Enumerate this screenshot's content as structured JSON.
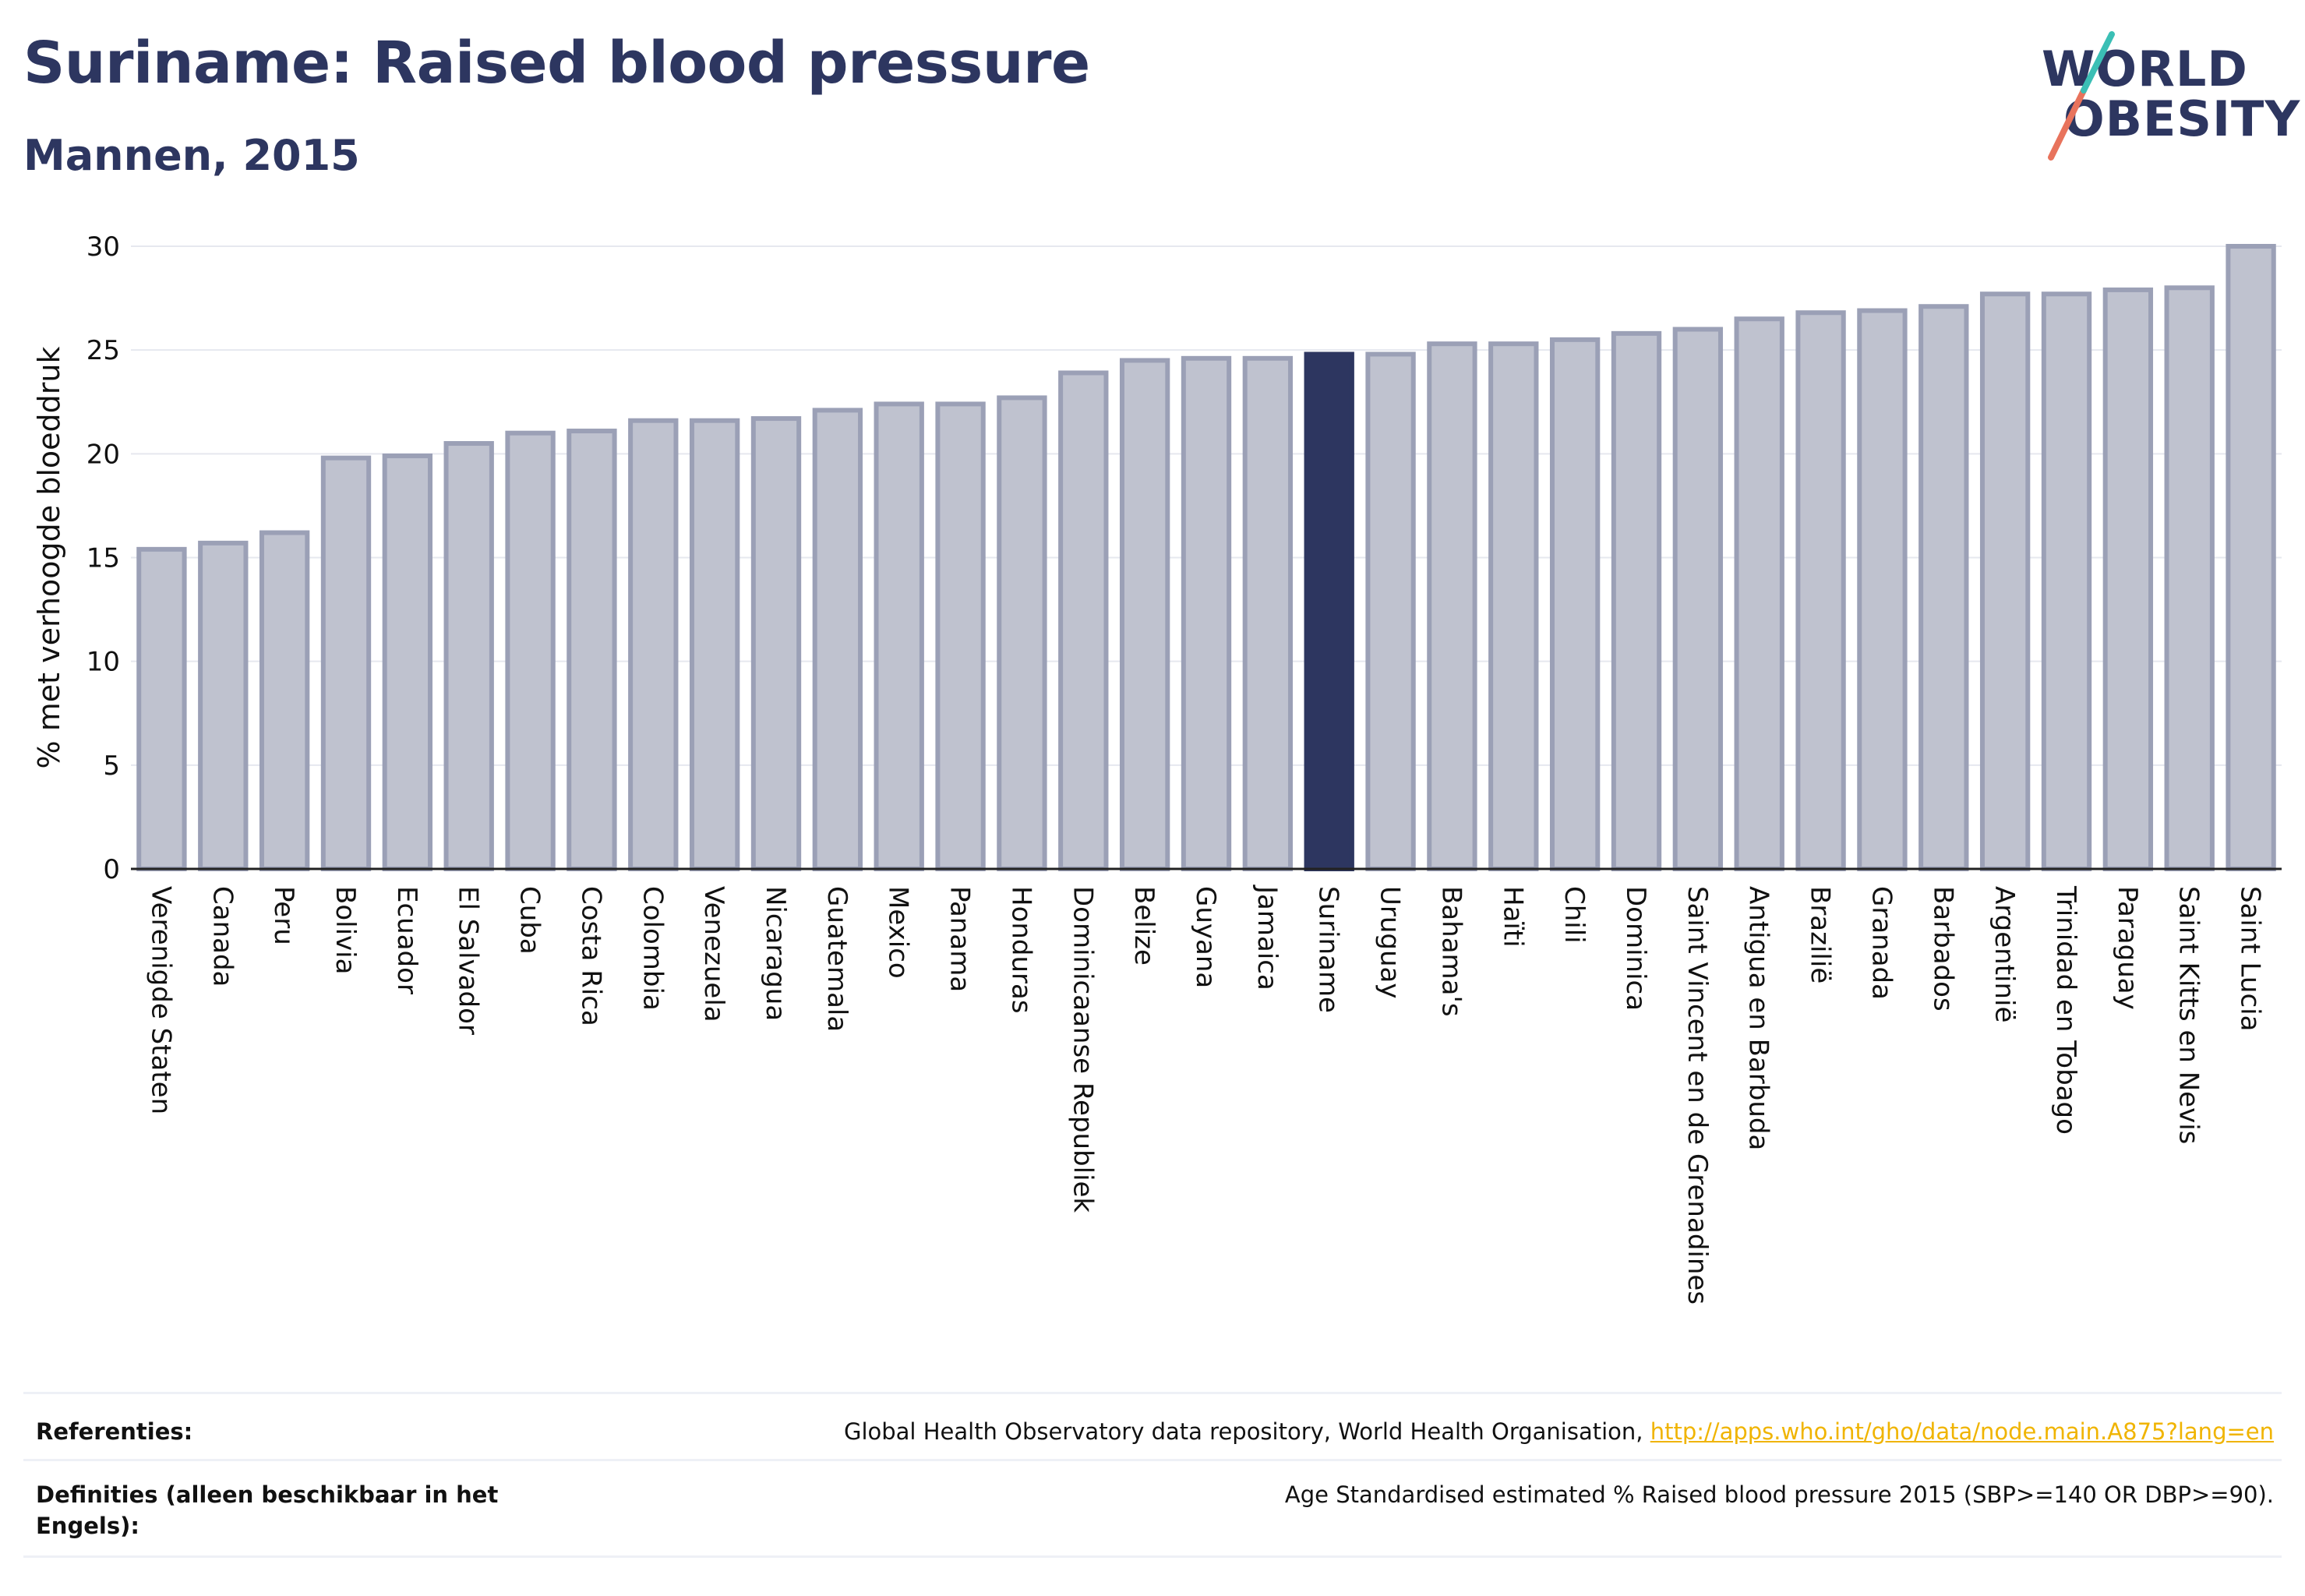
{
  "header": {
    "title": "Suriname: Raised blood pressure",
    "subtitle": "Mannen, 2015"
  },
  "logo": {
    "line1": "WORLD",
    "line2": "OBESITY"
  },
  "chart_data": {
    "type": "bar",
    "title": "Suriname: Raised blood pressure",
    "subtitle": "Mannen, 2015",
    "xlabel": "",
    "ylabel": "% met verhoogde bloeddruk",
    "ylim": [
      0,
      30
    ],
    "yticks": [
      0,
      5,
      10,
      15,
      20,
      25,
      30
    ],
    "grid": true,
    "highlight": "Suriname",
    "colors": {
      "bar": "#bfc2cf",
      "bar_border": "#9ba0b6",
      "highlight": "#2d3660",
      "grid": "#e6e8ef"
    },
    "categories": [
      "Verenigde Staten",
      "Canada",
      "Peru",
      "Bolivia",
      "Ecuador",
      "El Salvador",
      "Cuba",
      "Costa Rica",
      "Colombia",
      "Venezuela",
      "Nicaragua",
      "Guatemala",
      "Mexico",
      "Panama",
      "Honduras",
      "Dominicaanse Republiek",
      "Belize",
      "Guyana",
      "Jamaica",
      "Suriname",
      "Uruguay",
      "Bahama's",
      "Haïti",
      "Chili",
      "Dominica",
      "Saint Vincent en de Grenadines",
      "Antigua en Barbuda",
      "Brazilië",
      "Granada",
      "Barbados",
      "Argentinië",
      "Trinidad en Tobago",
      "Paraguay",
      "Saint Kitts en Nevis",
      "Saint Lucia"
    ],
    "values": [
      15.4,
      15.7,
      16.2,
      19.8,
      19.9,
      20.5,
      21.0,
      21.1,
      21.6,
      21.6,
      21.7,
      22.1,
      22.4,
      22.4,
      22.7,
      23.9,
      24.5,
      24.6,
      24.6,
      24.8,
      24.8,
      25.3,
      25.3,
      25.5,
      25.8,
      26.0,
      26.5,
      26.8,
      26.9,
      27.1,
      27.7,
      27.7,
      27.9,
      28.0,
      30.0
    ]
  },
  "footer": {
    "references_label": "Referenties:",
    "references_text": "Global Health Observatory data repository, World Health Organisation, ",
    "references_link": "http://apps.who.int/gho/data/node.main.A875?lang=en",
    "definitions_label": "Definities (alleen beschikbaar in het Engels):",
    "definitions_text": "Age Standardised estimated % Raised blood pressure 2015 (SBP>=140 OR DBP>=90)."
  }
}
